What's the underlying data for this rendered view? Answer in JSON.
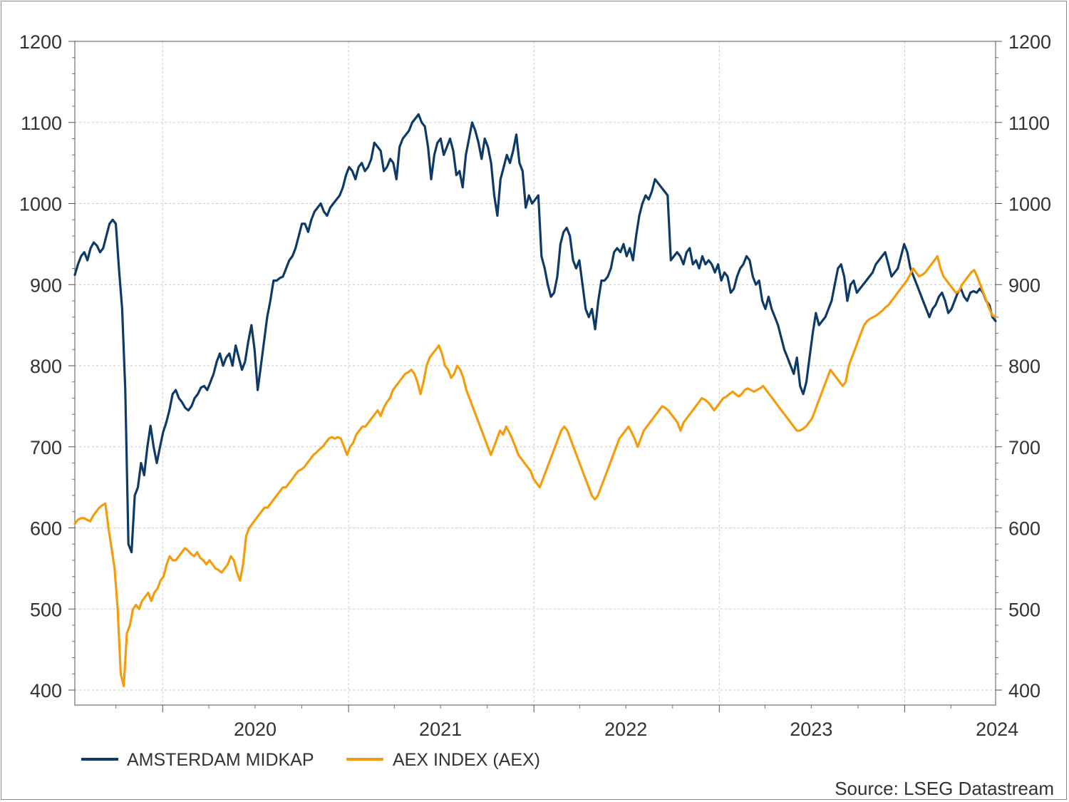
{
  "chart_data": {
    "type": "line",
    "title": "",
    "xlabel": "",
    "ylabel": "",
    "x_start": "2019-07-12",
    "x_end": "2024-06-28",
    "x_interval": "weekly",
    "x_ticks": [
      "2020",
      "2021",
      "2022",
      "2023",
      "2024"
    ],
    "ylim": [
      400,
      1200
    ],
    "yticks": [
      400,
      500,
      600,
      700,
      800,
      900,
      1000,
      1100,
      1200
    ],
    "y_right_axis": true,
    "grid": true,
    "legend_position": "bottom-left",
    "source": "Source: LSEG Datastream",
    "series": [
      {
        "name": "AMSTERDAM MIDKAP",
        "color": "#0d3a66",
        "values": [
          912,
          925,
          935,
          940,
          930,
          945,
          952,
          948,
          940,
          945,
          960,
          975,
          980,
          975,
          920,
          870,
          770,
          580,
          570,
          640,
          650,
          680,
          665,
          700,
          726,
          700,
          680,
          700,
          718,
          730,
          745,
          765,
          770,
          760,
          755,
          748,
          745,
          750,
          760,
          765,
          773,
          775,
          770,
          780,
          790,
          805,
          815,
          800,
          810,
          815,
          800,
          825,
          810,
          795,
          805,
          830,
          850,
          820,
          770,
          800,
          830,
          860,
          880,
          905,
          905,
          908,
          910,
          920,
          930,
          935,
          945,
          960,
          975,
          975,
          965,
          980,
          990,
          995,
          1000,
          990,
          985,
          995,
          1000,
          1005,
          1010,
          1020,
          1035,
          1045,
          1040,
          1030,
          1045,
          1050,
          1040,
          1045,
          1055,
          1075,
          1070,
          1065,
          1040,
          1045,
          1055,
          1050,
          1030,
          1070,
          1080,
          1085,
          1090,
          1100,
          1105,
          1110,
          1100,
          1095,
          1070,
          1030,
          1060,
          1075,
          1080,
          1060,
          1070,
          1080,
          1065,
          1035,
          1040,
          1020,
          1060,
          1080,
          1100,
          1090,
          1075,
          1055,
          1080,
          1070,
          1050,
          1010,
          985,
          1030,
          1045,
          1060,
          1050,
          1065,
          1085,
          1050,
          1040,
          995,
          1010,
          1000,
          1005,
          1010,
          935,
          920,
          900,
          885,
          890,
          910,
          950,
          965,
          970,
          960,
          930,
          920,
          930,
          900,
          870,
          860,
          870,
          845,
          880,
          905,
          905,
          910,
          920,
          940,
          945,
          940,
          950,
          935,
          945,
          930,
          960,
          985,
          1000,
          1010,
          1005,
          1015,
          1030,
          1025,
          1020,
          1015,
          1010,
          930,
          935,
          940,
          935,
          925,
          940,
          945,
          925,
          930,
          920,
          935,
          925,
          930,
          925,
          915,
          925,
          905,
          915,
          910,
          890,
          895,
          910,
          920,
          925,
          935,
          930,
          910,
          900,
          905,
          880,
          870,
          885,
          870,
          860,
          850,
          835,
          820,
          810,
          800,
          790,
          810,
          775,
          765,
          780,
          810,
          840,
          865,
          850,
          855,
          860,
          870,
          880,
          900,
          920,
          925,
          910,
          880,
          900,
          905,
          890,
          895,
          900,
          905,
          910,
          915,
          925,
          930,
          935,
          940,
          925,
          910,
          915,
          920,
          935,
          950,
          940,
          920,
          910,
          900,
          890,
          880,
          870,
          860,
          870,
          875,
          885,
          890,
          880,
          865,
          870,
          880,
          890,
          895,
          885,
          880,
          890,
          892,
          890,
          895,
          890,
          880,
          875,
          860,
          855
        ]
      },
      {
        "name": "AEX INDEX (AEX)",
        "color": "#f59c0c",
        "values": [
          605,
          610,
          612,
          612,
          610,
          608,
          615,
          620,
          625,
          628,
          630,
          600,
          575,
          550,
          500,
          420,
          405,
          470,
          480,
          500,
          505,
          500,
          510,
          515,
          520,
          510,
          520,
          525,
          535,
          540,
          555,
          565,
          560,
          560,
          565,
          570,
          575,
          572,
          568,
          565,
          570,
          563,
          560,
          555,
          560,
          555,
          550,
          548,
          545,
          550,
          555,
          565,
          560,
          545,
          535,
          555,
          590,
          600,
          605,
          610,
          615,
          620,
          625,
          625,
          630,
          635,
          640,
          645,
          650,
          650,
          655,
          660,
          665,
          670,
          672,
          675,
          680,
          685,
          690,
          693,
          697,
          700,
          705,
          710,
          712,
          710,
          712,
          710,
          700,
          690,
          700,
          705,
          715,
          720,
          725,
          725,
          730,
          735,
          740,
          745,
          738,
          748,
          755,
          760,
          770,
          775,
          780,
          785,
          790,
          792,
          795,
          790,
          780,
          765,
          780,
          800,
          810,
          815,
          820,
          825,
          815,
          800,
          795,
          785,
          790,
          800,
          795,
          785,
          770,
          760,
          750,
          740,
          730,
          720,
          710,
          700,
          690,
          700,
          710,
          720,
          715,
          725,
          718,
          710,
          700,
          690,
          685,
          680,
          675,
          670,
          660,
          655,
          650,
          660,
          670,
          680,
          690,
          700,
          710,
          720,
          725,
          720,
          710,
          700,
          690,
          680,
          670,
          660,
          650,
          640,
          635,
          640,
          650,
          660,
          670,
          680,
          690,
          700,
          710,
          715,
          720,
          725,
          718,
          710,
          700,
          710,
          720,
          725,
          730,
          735,
          740,
          745,
          750,
          748,
          745,
          740,
          735,
          730,
          720,
          730,
          735,
          740,
          745,
          750,
          755,
          760,
          758,
          755,
          750,
          745,
          750,
          755,
          760,
          762,
          765,
          768,
          765,
          762,
          765,
          770,
          772,
          770,
          768,
          770,
          772,
          775,
          770,
          765,
          760,
          755,
          750,
          745,
          740,
          735,
          730,
          725,
          720,
          720,
          722,
          725,
          730,
          735,
          745,
          755,
          765,
          775,
          785,
          795,
          790,
          785,
          780,
          775,
          780,
          800,
          810,
          820,
          830,
          840,
          850,
          855,
          858,
          860,
          862,
          865,
          868,
          872,
          875,
          880,
          885,
          890,
          895,
          900,
          905,
          912,
          920,
          915,
          910,
          912,
          915,
          920,
          925,
          930,
          935,
          920,
          910,
          905,
          900,
          895,
          890,
          892,
          900,
          905,
          910,
          915,
          918,
          910,
          900,
          890,
          880,
          870,
          862,
          860
        ]
      }
    ]
  }
}
